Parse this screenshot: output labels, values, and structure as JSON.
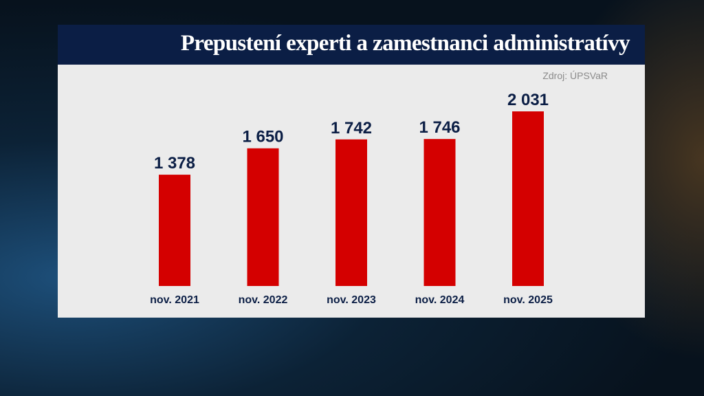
{
  "chart_data": {
    "type": "bar",
    "title": "Prepustení experti a zamestnanci administratívy",
    "source": "Zdroj: ÚPSVaR",
    "categories": [
      "nov. 2021",
      "nov. 2022",
      "nov. 2023",
      "nov. 2024",
      "nov. 2025"
    ],
    "values": [
      1378,
      1650,
      1742,
      1746,
      2031
    ],
    "value_labels": [
      "1 378",
      "1 650",
      "1 742",
      "1 746",
      "2 031"
    ],
    "ylim": [
      230,
      2031
    ],
    "grid": false,
    "colors": {
      "bar": "#d40000",
      "label": "#0b1e45",
      "title_bg": "#0b1e45",
      "panel": "#ebebeb"
    }
  }
}
